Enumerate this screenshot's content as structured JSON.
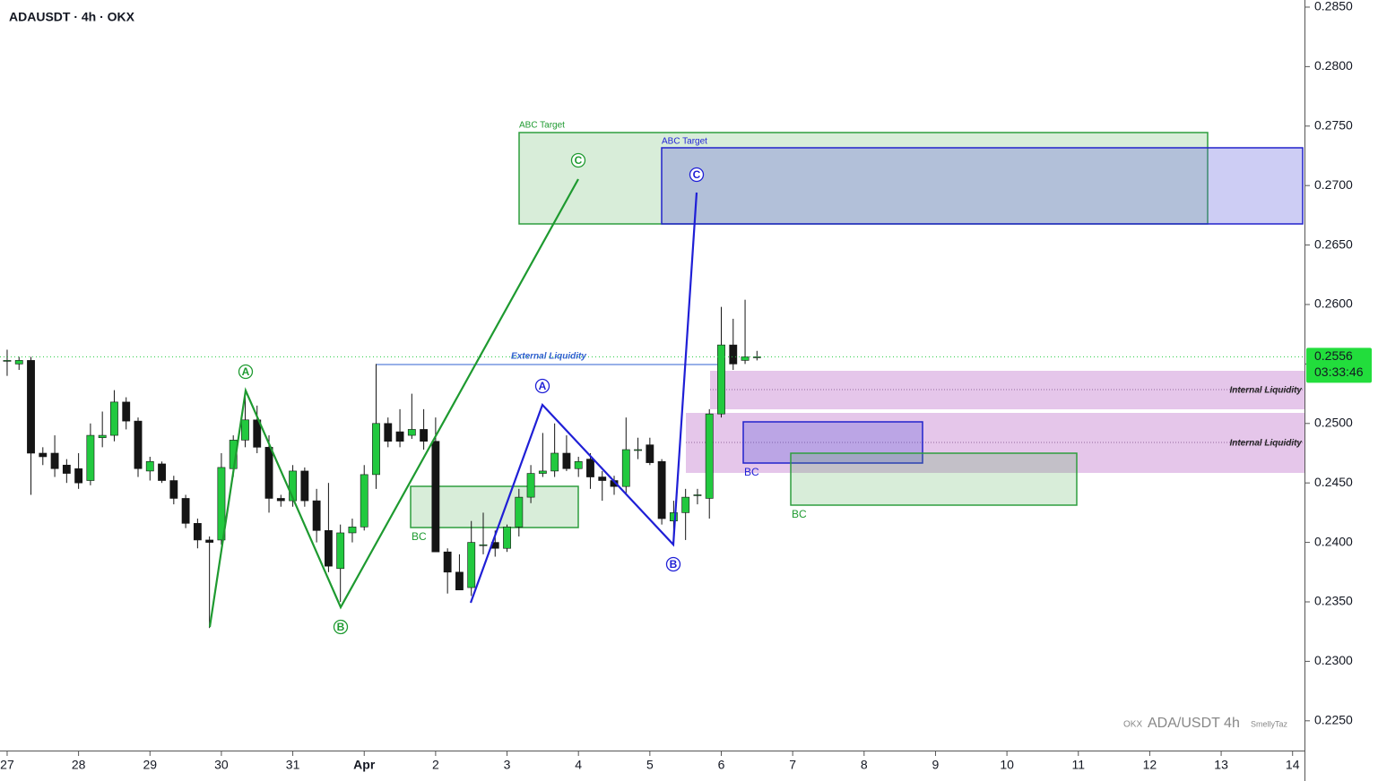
{
  "chart_data": {
    "type": "candlestick",
    "title": "ADAUSDT · 4h · OKX",
    "watermark": [
      "OKX",
      "ADA/USDT 4h",
      "SmellyTaz"
    ],
    "last_price": 0.2556,
    "countdown": "03:33:46",
    "up_color": "#22c93f",
    "down_color": "#151515",
    "x": [
      0,
      1,
      2,
      3,
      4,
      5,
      6,
      7,
      8,
      9,
      10,
      11,
      12,
      13,
      14,
      15,
      16,
      17,
      18,
      19,
      20,
      21,
      22,
      23,
      24,
      25,
      26,
      27,
      28,
      29,
      30,
      31,
      32,
      33,
      34,
      35,
      36,
      37,
      38,
      39,
      40,
      41,
      42,
      43,
      44,
      45,
      46,
      47,
      48,
      49,
      50,
      51,
      52,
      53,
      54,
      55,
      56,
      57,
      58,
      59,
      60,
      61,
      62,
      63
    ],
    "open": [
      0.2553,
      0.255,
      0.2553,
      0.2475,
      0.2475,
      0.2465,
      0.2462,
      0.2452,
      0.2488,
      0.249,
      0.2518,
      0.2502,
      0.246,
      0.2466,
      0.2452,
      0.2437,
      0.2416,
      0.2402,
      0.2402,
      0.2462,
      0.2486,
      0.2503,
      0.248,
      0.2437,
      0.2435,
      0.246,
      0.2435,
      0.241,
      0.2378,
      0.2408,
      0.2413,
      0.2457,
      0.25,
      0.2493,
      0.249,
      0.2495,
      0.2485,
      0.2392,
      0.2375,
      0.2362,
      0.2398,
      0.24,
      0.2395,
      0.2413,
      0.2438,
      0.2458,
      0.246,
      0.2475,
      0.2462,
      0.247,
      0.2455,
      0.2452,
      0.2447,
      0.2478,
      0.2482,
      0.2468,
      0.2418,
      0.2425,
      0.244,
      0.2437,
      0.2508,
      0.2566,
      0.2553,
      0.2556
    ],
    "high": [
      0.2562,
      0.2556,
      0.2556,
      0.248,
      0.249,
      0.247,
      0.2475,
      0.25,
      0.251,
      0.2528,
      0.2522,
      0.2505,
      0.2472,
      0.2468,
      0.2456,
      0.244,
      0.242,
      0.2405,
      0.2475,
      0.249,
      0.2528,
      0.2515,
      0.249,
      0.244,
      0.2465,
      0.2463,
      0.2445,
      0.245,
      0.2415,
      0.242,
      0.2465,
      0.255,
      0.2505,
      0.2512,
      0.2525,
      0.2512,
      0.2505,
      0.2395,
      0.239,
      0.2418,
      0.2425,
      0.241,
      0.2415,
      0.2445,
      0.2465,
      0.2492,
      0.25,
      0.249,
      0.2472,
      0.2475,
      0.246,
      0.2456,
      0.2505,
      0.2488,
      0.2488,
      0.247,
      0.2435,
      0.2445,
      0.2445,
      0.2512,
      0.2598,
      0.2588,
      0.2604,
      0.2561
    ],
    "low": [
      0.254,
      0.2545,
      0.244,
      0.2465,
      0.2455,
      0.245,
      0.2445,
      0.2448,
      0.248,
      0.2485,
      0.2495,
      0.2455,
      0.2452,
      0.245,
      0.2432,
      0.2412,
      0.2395,
      0.2328,
      0.2398,
      0.2455,
      0.248,
      0.2475,
      0.2425,
      0.243,
      0.243,
      0.243,
      0.24,
      0.2375,
      0.235,
      0.24,
      0.241,
      0.2445,
      0.248,
      0.248,
      0.2487,
      0.2478,
      0.2392,
      0.2357,
      0.236,
      0.2355,
      0.239,
      0.2388,
      0.2392,
      0.2405,
      0.2433,
      0.2455,
      0.2455,
      0.246,
      0.2455,
      0.2445,
      0.2435,
      0.244,
      0.244,
      0.247,
      0.2465,
      0.2415,
      0.2405,
      0.2402,
      0.2432,
      0.242,
      0.2505,
      0.2545,
      0.255,
      0.2553
    ],
    "close": [
      0.2553,
      0.2553,
      0.2475,
      0.2472,
      0.2462,
      0.2458,
      0.245,
      0.249,
      0.249,
      0.2518,
      0.2502,
      0.2462,
      0.2468,
      0.2452,
      0.2437,
      0.2416,
      0.2402,
      0.24,
      0.2463,
      0.2486,
      0.2503,
      0.248,
      0.2437,
      0.2435,
      0.246,
      0.2435,
      0.241,
      0.238,
      0.2408,
      0.2413,
      0.2457,
      0.25,
      0.2485,
      0.2485,
      0.2495,
      0.2485,
      0.2392,
      0.2375,
      0.236,
      0.24,
      0.2398,
      0.2395,
      0.2413,
      0.2438,
      0.2458,
      0.246,
      0.2475,
      0.2462,
      0.2468,
      0.2455,
      0.2452,
      0.2447,
      0.2478,
      0.2478,
      0.2467,
      0.242,
      0.2425,
      0.2438,
      0.244,
      0.2508,
      0.2566,
      0.255,
      0.2556,
      0.2556
    ],
    "xlim": [
      -0.6,
      109
    ],
    "xticks": [
      {
        "value": 0,
        "label": "27"
      },
      {
        "value": 6,
        "label": "28"
      },
      {
        "value": 12,
        "label": "29"
      },
      {
        "value": 18,
        "label": "30"
      },
      {
        "value": 24,
        "label": "31"
      },
      {
        "value": 30,
        "label": "Apr"
      },
      {
        "value": 36,
        "label": "2"
      },
      {
        "value": 42,
        "label": "3"
      },
      {
        "value": 48,
        "label": "4"
      },
      {
        "value": 54,
        "label": "5"
      },
      {
        "value": 60,
        "label": "6"
      },
      {
        "value": 66,
        "label": "7"
      },
      {
        "value": 72,
        "label": "8"
      },
      {
        "value": 78,
        "label": "9"
      },
      {
        "value": 84,
        "label": "10"
      },
      {
        "value": 90,
        "label": "11"
      },
      {
        "value": 96,
        "label": "12"
      },
      {
        "value": 102,
        "label": "13"
      },
      {
        "value": 108,
        "label": "14"
      }
    ],
    "ylim": [
      0.2225,
      0.2856
    ],
    "yticks": [
      {
        "value": 0.225,
        "label": "0.2250"
      },
      {
        "value": 0.23,
        "label": "0.2300"
      },
      {
        "value": 0.235,
        "label": "0.2350"
      },
      {
        "value": 0.24,
        "label": "0.2400"
      },
      {
        "value": 0.245,
        "label": "0.2450"
      },
      {
        "value": 0.25,
        "label": "0.2500"
      },
      {
        "value": 0.255,
        "label": "0.2550"
      },
      {
        "value": 0.26,
        "label": "0.2600"
      },
      {
        "value": 0.265,
        "label": "0.2650"
      },
      {
        "value": 0.27,
        "label": "0.2700"
      },
      {
        "value": 0.275,
        "label": "0.2750"
      },
      {
        "value": 0.28,
        "label": "0.2800"
      },
      {
        "value": 0.285,
        "label": "0.2850"
      }
    ],
    "annotations": [
      "ABC Target",
      "ABC Target",
      "External Liquidity",
      "Internal Liquidity",
      "Internal Liquidity",
      "BC",
      "BC",
      "BC",
      "A",
      "B",
      "C",
      "A",
      "B",
      "C"
    ]
  }
}
